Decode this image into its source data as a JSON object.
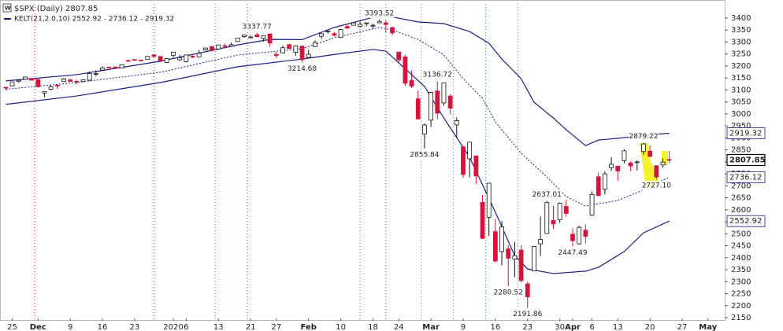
{
  "chart_data": {
    "type": "candlestick",
    "title": "$SPX (Daily) 2807.85",
    "legend": "KELT(21,2.0,10) 2552.92 - 2736.12 - 2919.32",
    "up_color": "#ffffff",
    "down_color": "#d4143c",
    "x": [
      -1,
      0,
      1,
      2,
      3,
      4,
      5,
      6,
      7,
      8,
      9,
      10,
      11,
      12,
      13,
      14,
      15,
      16,
      17,
      18,
      19,
      20,
      21,
      22,
      23,
      24,
      25,
      26,
      27,
      28,
      29,
      30,
      31,
      32,
      33,
      34,
      35,
      36,
      37,
      38,
      39,
      40,
      41,
      42,
      43,
      44,
      45,
      46,
      47,
      48,
      49,
      50,
      51,
      52,
      53,
      54,
      55,
      56,
      57,
      58,
      59,
      60,
      61,
      62,
      63,
      64,
      65,
      66,
      67,
      68,
      69,
      70,
      71,
      72,
      73,
      74,
      75,
      76,
      77,
      78,
      79,
      80,
      81,
      82,
      83,
      84,
      85,
      86,
      87,
      88,
      89,
      90,
      91,
      92,
      93,
      94,
      95,
      96,
      97,
      98,
      99,
      100,
      101,
      102
    ],
    "open": [
      3111,
      3117,
      3135,
      3145,
      3148,
      3144,
      3087,
      3103,
      3120,
      3135,
      3142,
      3136,
      3135,
      3141,
      3166,
      3183,
      3195,
      3196,
      3192,
      3223,
      3227,
      3225,
      3227,
      3247,
      3240,
      3215,
      3245,
      3226,
      3218,
      3241,
      3238,
      3267,
      3281,
      3271,
      3285,
      3283,
      3302,
      3323,
      3321,
      3330,
      3315,
      3334,
      3248,
      3255,
      3289,
      3257,
      3283,
      3236,
      3281,
      3324,
      3344,
      3335,
      3319,
      3365,
      3370,
      3365,
      3378,
      3369,
      3380,
      3380,
      3361,
      3258,
      3238,
      3140,
      3063,
      2916,
      2974,
      3096,
      3046,
      3075,
      2954,
      2863,
      2813,
      2825,
      2631,
      2569,
      2509,
      2426,
      2437,
      2394,
      2432,
      2291,
      2345,
      2458,
      2501,
      2556,
      2558,
      2614,
      2498,
      2458,
      2515,
      2578,
      2738,
      2686,
      2776,
      2782,
      2805,
      2795,
      2799,
      2843,
      2845,
      2784,
      2787,
      2810
    ],
    "high": [
      3112,
      3134,
      3142,
      3155,
      3150,
      3145,
      3095,
      3120,
      3120,
      3150,
      3148,
      3143,
      3144,
      3177,
      3182,
      3198,
      3198,
      3198,
      3206,
      3226,
      3227,
      3226,
      3240,
      3248,
      3240,
      3231,
      3258,
      3246,
      3247,
      3245,
      3267,
      3276,
      3283,
      3288,
      3294,
      3298,
      3317,
      3330,
      3329,
      3337.77,
      3326,
      3334,
      3259,
      3286,
      3293,
      3286,
      3283,
      3268,
      3307,
      3337,
      3348,
      3342,
      3353,
      3376,
      3382,
      3385,
      3381,
      3377,
      3393.52,
      3390,
      3361,
      3260,
      3247,
      3182,
      3098,
      2960,
      3091,
      3136.72,
      3130,
      3083,
      2985,
      2863,
      2882,
      2825,
      2661,
      2711,
      2562,
      2553,
      2453,
      2467,
      2453,
      2300,
      2449,
      2572,
      2637.01,
      2616,
      2631,
      2641,
      2523,
      2533,
      2539,
      2677,
      2756,
      2760,
      2819,
      2783,
      2852,
      2802,
      2807,
      2879.22,
      2868,
      2785,
      2815,
      2845
    ],
    "low": [
      3099,
      3117,
      3131,
      3143,
      3139,
      3110,
      3070,
      3099,
      3104,
      3134,
      3135,
      3124,
      3133,
      3138,
      3157,
      3183,
      3191,
      3191,
      3192,
      3217,
      3222,
      3220,
      3227,
      3235,
      3216,
      3213,
      3235,
      3222,
      3215,
      3233,
      3236,
      3264,
      3260,
      3268,
      3278,
      3280,
      3302,
      3318,
      3316,
      3321,
      3302,
      3281,
      3234,
      3253,
      3272,
      3243,
      3214.68,
      3236,
      3281,
      3313,
      3335,
      3323,
      3317,
      3355,
      3369,
      3360,
      3366,
      3356,
      3379,
      3341,
      3328,
      3214,
      3118,
      3108,
      2977,
      2855.84,
      2946,
      2977,
      3034,
      2999,
      2901,
      2734,
      2735,
      2707,
      2478,
      2492,
      2381,
      2368,
      2280.52,
      2319,
      2296,
      2191.86,
      2345,
      2407,
      2500,
      2520,
      2545,
      2571,
      2447.49,
      2455,
      2459,
      2574,
      2657,
      2664,
      2762,
      2721,
      2794,
      2761,
      2764,
      2830,
      2820,
      2727.1,
      2776,
      2794
    ],
    "close": [
      3110,
      3134,
      3140,
      3154,
      3141,
      3114,
      3093,
      3113,
      3117,
      3146,
      3136,
      3133,
      3142,
      3169,
      3169,
      3192,
      3193,
      3191,
      3205,
      3221,
      3224,
      3223,
      3240,
      3240,
      3221,
      3231,
      3258,
      3235,
      3246,
      3237,
      3253,
      3275,
      3265,
      3288,
      3283,
      3289,
      3317,
      3330,
      3321,
      3322,
      3326,
      3296,
      3244,
      3276,
      3273,
      3284,
      3226,
      3249,
      3298,
      3335,
      3346,
      3328,
      3352,
      3358,
      3380,
      3374,
      3380,
      3370,
      3386,
      3373,
      3338,
      3226,
      3128,
      3116,
      2979,
      2954,
      3090,
      3003,
      3130,
      3024,
      2972,
      2747,
      2882,
      2741,
      2481,
      2711,
      2386,
      2529,
      2398,
      2409,
      2305,
      2237,
      2447,
      2476,
      2630,
      2541,
      2627,
      2585,
      2471,
      2527,
      2489,
      2664,
      2659,
      2750,
      2790,
      2762,
      2846,
      2783,
      2800,
      2875,
      2823,
      2737,
      2799,
      2807.85
    ],
    "series": [
      {
        "color": "#1c1c8a",
        "style": "solid",
        "x": [
          -1,
          10,
          23,
          35,
          40,
          45,
          50,
          56,
          58,
          63,
          67,
          71,
          74,
          76,
          79,
          81,
          84,
          86,
          89,
          91,
          95,
          98,
          102
        ],
        "values": [
          3138,
          3164,
          3220,
          3288,
          3311,
          3310,
          3361,
          3403,
          3410,
          3384,
          3377,
          3344,
          3295,
          3229,
          3147,
          3049,
          2983,
          2934,
          2868,
          2891,
          2901,
          2911,
          2919.32
        ]
      },
      {
        "color": "#1c1c8a",
        "style": "dotted",
        "x": [
          -1,
          10,
          23,
          35,
          45,
          50,
          57,
          59,
          63,
          67,
          70,
          73,
          75,
          79,
          83,
          86,
          89,
          94,
          97,
          102
        ],
        "values": [
          3103,
          3131,
          3174,
          3246,
          3272,
          3318,
          3361,
          3351,
          3311,
          3246,
          3147,
          3065,
          2967,
          2836,
          2737,
          2655,
          2616,
          2639,
          2672,
          2736.12
        ]
      },
      {
        "color": "#1c1c8a",
        "style": "solid",
        "x": [
          -1,
          10,
          23,
          35,
          45,
          51,
          56,
          58,
          60,
          64,
          67,
          71,
          75,
          78,
          80,
          84,
          89,
          91,
          95,
          98,
          102
        ],
        "values": [
          3040,
          3075,
          3131,
          3197,
          3229,
          3252,
          3269,
          3262,
          3213,
          3115,
          2983,
          2819,
          2590,
          2409,
          2353,
          2334,
          2344,
          2360,
          2426,
          2504,
          2552.92
        ]
      }
    ],
    "annotations": [
      {
        "x": 38,
        "y": 3337.77,
        "label": "3337.77",
        "position": "above"
      },
      {
        "x": 57,
        "y": 3393.52,
        "label": "3393.52",
        "position": "above"
      },
      {
        "x": 45,
        "y": 3214.68,
        "label": "3214.68",
        "position": "below"
      },
      {
        "x": 66,
        "y": 3136.72,
        "label": "3136.72",
        "position": "above"
      },
      {
        "x": 64,
        "y": 2855.84,
        "label": "2855.84",
        "position": "below"
      },
      {
        "x": 77,
        "y": 2280.52,
        "label": "2280.52",
        "position": "below"
      },
      {
        "x": 80,
        "y": 2191.86,
        "label": "2191.86",
        "position": "below"
      },
      {
        "x": 83,
        "y": 2637.01,
        "label": "2637.01",
        "position": "above"
      },
      {
        "x": 87,
        "y": 2447.49,
        "label": "2447.49",
        "position": "below"
      },
      {
        "x": 98,
        "y": 2879.22,
        "label": "2879.22",
        "position": "above"
      },
      {
        "x": 100,
        "y": 2727.1,
        "label": "2727.10",
        "position": "below"
      }
    ],
    "vlines": [
      {
        "x": 3.5,
        "color": "#e02020"
      },
      {
        "x": 22,
        "color": "#e02020"
      },
      {
        "x": 31.5,
        "color": "#e02020"
      },
      {
        "x": 36.5,
        "color": "#e02020"
      },
      {
        "x": 54,
        "color": "#e02020"
      },
      {
        "x": 58,
        "color": "#e02020"
      },
      {
        "x": 63.5,
        "color": "#2a9a2a"
      },
      {
        "x": 68.5,
        "color": "#2a9a2a"
      },
      {
        "x": 73.5,
        "color": "#2a9a2a"
      },
      {
        "x": 78.5,
        "color": "#2a9a2a"
      }
    ],
    "xlim": [
      -1.9,
      110.6
    ],
    "xticks": [
      {
        "value": 0,
        "label": "25"
      },
      {
        "value": 4,
        "label": "Dec"
      },
      {
        "value": 9,
        "label": "9"
      },
      {
        "value": 14,
        "label": "16"
      },
      {
        "value": 19,
        "label": "23"
      },
      {
        "value": 25,
        "label": "2020"
      },
      {
        "value": 27,
        "label": "6"
      },
      {
        "value": 32,
        "label": "13"
      },
      {
        "value": 37,
        "label": "21"
      },
      {
        "value": 41,
        "label": "27"
      },
      {
        "value": 46,
        "label": "Feb"
      },
      {
        "value": 51,
        "label": "10"
      },
      {
        "value": 56,
        "label": "18"
      },
      {
        "value": 60,
        "label": "24"
      },
      {
        "value": 65,
        "label": "Mar"
      },
      {
        "value": 70,
        "label": "9"
      },
      {
        "value": 75,
        "label": "16"
      },
      {
        "value": 80,
        "label": "23"
      },
      {
        "value": 85,
        "label": "30"
      },
      {
        "value": 87,
        "label": "Apr"
      },
      {
        "value": 90,
        "label": "6"
      },
      {
        "value": 94,
        "label": "13"
      },
      {
        "value": 99,
        "label": "20"
      },
      {
        "value": 104,
        "label": "27"
      },
      {
        "value": 108,
        "label": "May"
      }
    ],
    "ylim": [
      2137,
      3459
    ],
    "yticks": [
      2150,
      2200,
      2250,
      2300,
      2350,
      2400,
      2450,
      2500,
      2550,
      2600,
      2650,
      2700,
      2750,
      2800,
      2850,
      2900,
      2950,
      3000,
      3050,
      3100,
      3150,
      3200,
      3250,
      3300,
      3350,
      3400
    ]
  }
}
